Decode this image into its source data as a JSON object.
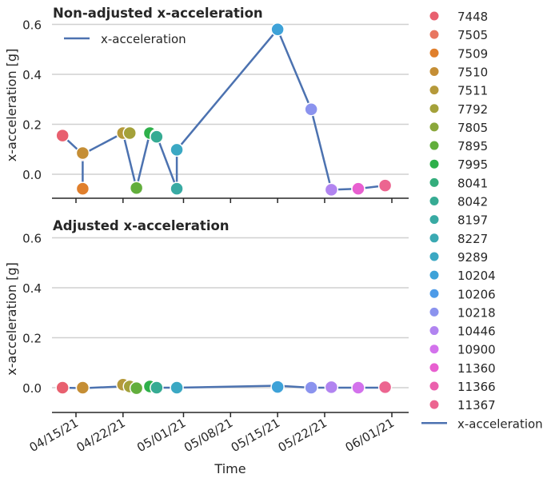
{
  "chart_data": {
    "type": "scatter",
    "x_tick_labels": [
      "04/15/21",
      "04/22/21",
      "05/01/21",
      "05/08/21",
      "05/15/21",
      "05/22/21",
      "06/01/21"
    ],
    "xlabel": "Time",
    "legend_position": "right",
    "line_legend_label": "x-acceleration",
    "ids": [
      "7448",
      "7505",
      "7509",
      "7510",
      "7511",
      "7792",
      "7805",
      "7895",
      "7995",
      "8041",
      "8042",
      "8197",
      "8227",
      "9289",
      "10204",
      "10206",
      "10218",
      "10446",
      "10900",
      "11360",
      "11366",
      "11367"
    ],
    "colors": [
      "#e8606f",
      "#e87660",
      "#e07f2c",
      "#c58e35",
      "#b5993a",
      "#a4a13a",
      "#8aa73b",
      "#62ae3c",
      "#2eb04a",
      "#34ad7c",
      "#36ab93",
      "#38aaa3",
      "#3aa9b2",
      "#3ba8c3",
      "#3ea2d8",
      "#4d9be8",
      "#8b93ee",
      "#b184f0",
      "#d372ec",
      "#e85fd0",
      "#eb61ad",
      "#ec6590"
    ],
    "panels": [
      {
        "title": "Non-adjusted x-acceleration",
        "ylabel": "x-acceleration [g]",
        "ylim": [
          -0.1,
          0.65
        ],
        "yticks": [
          "0.0",
          "0.2",
          "0.4",
          "0.6"
        ],
        "grid": true,
        "legend": "upper-left",
        "line": [
          {
            "x": "2021-04-13",
            "y": 0.155
          },
          {
            "x": "2021-04-16",
            "y": 0.08
          },
          {
            "x": "2021-04-16",
            "y": -0.058
          },
          {
            "x": "2021-04-16",
            "y": 0.08
          },
          {
            "x": "2021-04-22",
            "y": 0.165
          },
          {
            "x": "2021-04-24",
            "y": -0.055
          },
          {
            "x": "2021-04-26",
            "y": 0.165
          },
          {
            "x": "2021-04-27",
            "y": 0.155
          },
          {
            "x": "2021-04-30",
            "y": -0.058
          },
          {
            "x": "2021-04-30",
            "y": 0.098
          },
          {
            "x": "2021-05-15",
            "y": 0.58
          },
          {
            "x": "2021-05-20",
            "y": 0.26
          },
          {
            "x": "2021-05-23",
            "y": -0.062
          },
          {
            "x": "2021-05-27",
            "y": -0.058
          },
          {
            "x": "2021-05-31",
            "y": -0.045
          }
        ],
        "points": [
          {
            "id": "7448",
            "x": "2021-04-13",
            "y": 0.155
          },
          {
            "id": "7505",
            "x": "2021-04-16",
            "y": 0.08
          },
          {
            "id": "7509",
            "x": "2021-04-16",
            "y": -0.058
          },
          {
            "id": "7510",
            "x": "2021-04-16",
            "y": 0.085
          },
          {
            "id": "7511",
            "x": "2021-04-22",
            "y": 0.165
          },
          {
            "id": "7792",
            "x": "2021-04-23",
            "y": 0.165
          },
          {
            "id": "7805",
            "x": "2021-04-24",
            "y": -0.055
          },
          {
            "id": "7895",
            "x": "2021-04-24",
            "y": -0.055
          },
          {
            "id": "7995",
            "x": "2021-04-26",
            "y": 0.165
          },
          {
            "id": "8041",
            "x": "2021-04-27",
            "y": 0.155
          },
          {
            "id": "8042",
            "x": "2021-04-27",
            "y": 0.15
          },
          {
            "id": "8197",
            "x": "2021-04-30",
            "y": -0.058
          },
          {
            "id": "8227",
            "x": "2021-04-30",
            "y": 0.098
          },
          {
            "id": "9289",
            "x": "2021-04-30",
            "y": 0.098
          },
          {
            "id": "10204",
            "x": "2021-05-15",
            "y": 0.58
          },
          {
            "id": "10218",
            "x": "2021-05-20",
            "y": 0.26
          },
          {
            "id": "10446",
            "x": "2021-05-23",
            "y": -0.062
          },
          {
            "id": "10900",
            "x": "2021-05-27",
            "y": -0.058
          },
          {
            "id": "11360",
            "x": "2021-05-27",
            "y": -0.058
          },
          {
            "id": "11366",
            "x": "2021-05-31",
            "y": -0.045
          },
          {
            "id": "11367",
            "x": "2021-05-31",
            "y": -0.045
          }
        ]
      },
      {
        "title": "Adjusted x-acceleration",
        "ylabel": "x-acceleration [g]",
        "ylim": [
          -0.1,
          0.65
        ],
        "yticks": [
          "0.0",
          "0.2",
          "0.4",
          "0.6"
        ],
        "grid": true,
        "line": [
          {
            "x": "2021-04-13",
            "y": 0.0
          },
          {
            "x": "2021-04-16",
            "y": -0.002
          },
          {
            "x": "2021-04-22",
            "y": 0.005
          },
          {
            "x": "2021-04-24",
            "y": 0.0
          },
          {
            "x": "2021-04-26",
            "y": 0.0
          },
          {
            "x": "2021-04-27",
            "y": 0.0
          },
          {
            "x": "2021-04-30",
            "y": 0.0
          },
          {
            "x": "2021-05-15",
            "y": 0.008
          },
          {
            "x": "2021-05-20",
            "y": 0.0
          },
          {
            "x": "2021-05-23",
            "y": 0.0
          },
          {
            "x": "2021-05-27",
            "y": 0.0
          },
          {
            "x": "2021-05-31",
            "y": 0.0
          }
        ],
        "points": [
          {
            "id": "7448",
            "x": "2021-04-13",
            "y": 0.0
          },
          {
            "id": "7505",
            "x": "2021-04-16",
            "y": -0.002
          },
          {
            "id": "7510",
            "x": "2021-04-16",
            "y": 0.0
          },
          {
            "id": "7511",
            "x": "2021-04-22",
            "y": 0.012
          },
          {
            "id": "7792",
            "x": "2021-04-23",
            "y": 0.005
          },
          {
            "id": "7895",
            "x": "2021-04-24",
            "y": -0.002
          },
          {
            "id": "7995",
            "x": "2021-04-26",
            "y": 0.005
          },
          {
            "id": "8042",
            "x": "2021-04-27",
            "y": 0.0
          },
          {
            "id": "9289",
            "x": "2021-04-30",
            "y": 0.0
          },
          {
            "id": "10204",
            "x": "2021-05-15",
            "y": 0.003
          },
          {
            "id": "10218",
            "x": "2021-05-20",
            "y": 0.0
          },
          {
            "id": "10446",
            "x": "2021-05-23",
            "y": 0.002
          },
          {
            "id": "10900",
            "x": "2021-05-27",
            "y": 0.0
          },
          {
            "id": "11367",
            "x": "2021-05-31",
            "y": 0.002
          }
        ]
      }
    ]
  }
}
